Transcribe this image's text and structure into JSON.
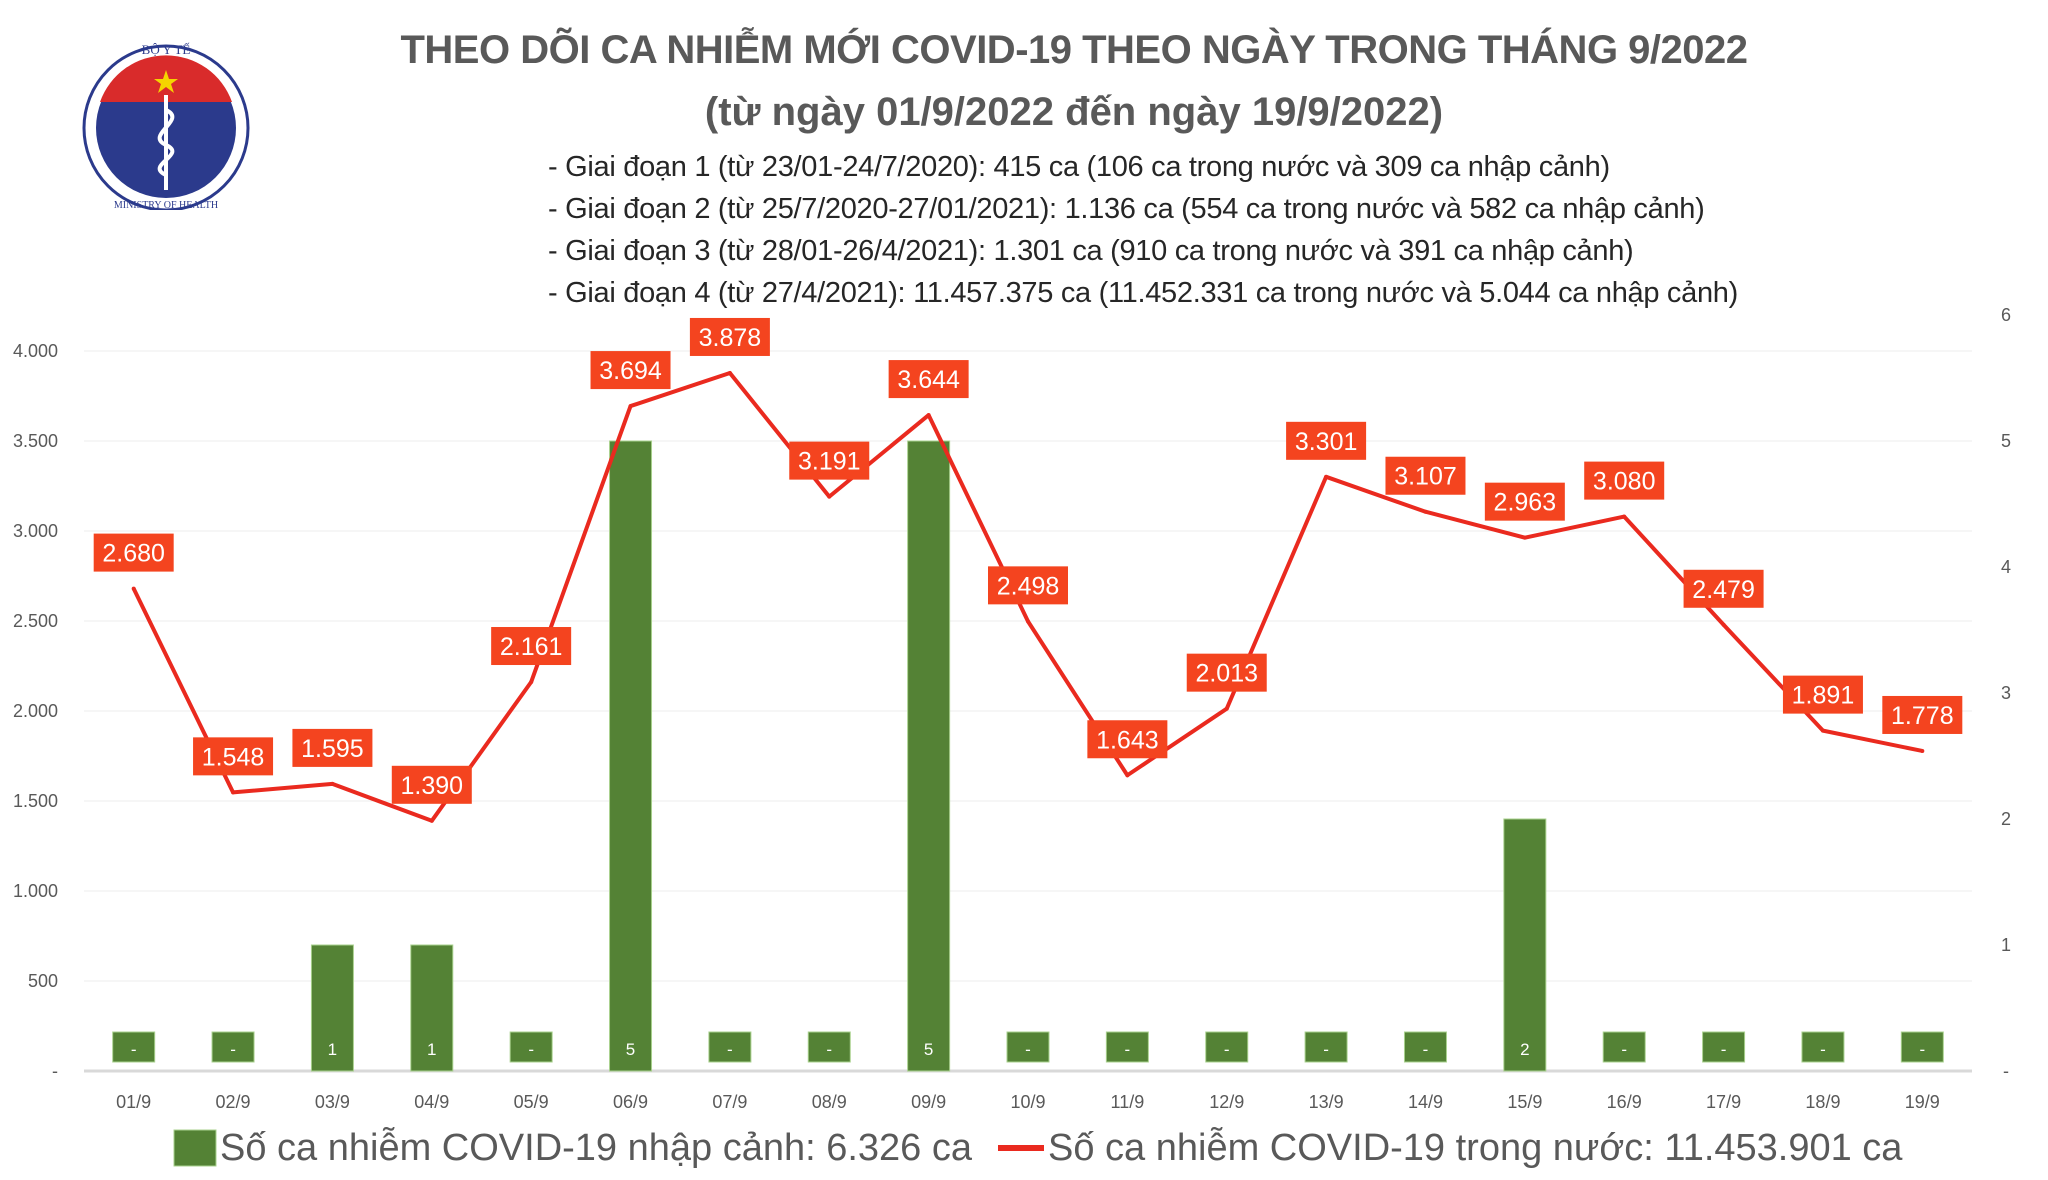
{
  "logo": {
    "text_top": "BỘ Y TẾ",
    "text_bottom": "MINISTRY OF HEALTH"
  },
  "title": "THEO DÕI CA NHIỄM MỚI COVID-19 THEO NGÀY TRONG THÁNG 9/2022",
  "subtitle": "(từ ngày 01/9/2022 đến ngày 19/9/2022)",
  "notes": [
    "- Giai đoạn 1 (từ 23/01-24/7/2020): 415 ca (106 ca trong nước và 309 ca nhập cảnh)",
    "- Giai đoạn 2 (từ 25/7/2020-27/01/2021): 1.136 ca (554 ca trong nước và 582 ca nhập cảnh)",
    "- Giai đoạn 3 (từ 28/01-26/4/2021): 1.301 ca (910 ca trong nước và 391 ca nhập cảnh)",
    "- Giai đoạn 4 (từ 27/4/2021): 11.457.375 ca (11.452.331 ca trong nước và 5.044 ca nhập cảnh)"
  ],
  "chart_data": {
    "type": "bar+line",
    "categories": [
      "01/9",
      "02/9",
      "03/9",
      "04/9",
      "05/9",
      "06/9",
      "07/9",
      "08/9",
      "09/9",
      "10/9",
      "11/9",
      "12/9",
      "13/9",
      "14/9",
      "15/9",
      "16/9",
      "17/9",
      "18/9",
      "19/9"
    ],
    "series": [
      {
        "name": "Số ca nhiễm COVID-19 nhập cảnh: 6.326 ca",
        "type": "bar",
        "axis": "right",
        "color": "#548235",
        "values": [
          0,
          0,
          1,
          1,
          0,
          5,
          0,
          0,
          5,
          0,
          0,
          0,
          0,
          0,
          2,
          0,
          0,
          0,
          0
        ],
        "labels": [
          "-",
          "-",
          "1",
          "1",
          "-",
          "5",
          "-",
          "-",
          "5",
          "-",
          "-",
          "-",
          "-",
          "-",
          "2",
          "-",
          "-",
          "-",
          "-"
        ]
      },
      {
        "name": "Số ca nhiễm COVID-19 trong nước: 11.453.901 ca",
        "type": "line",
        "axis": "left",
        "color": "#ea2a1f",
        "values": [
          2680,
          1548,
          1595,
          1390,
          2161,
          3694,
          3878,
          3191,
          3644,
          2498,
          1643,
          2013,
          3301,
          3107,
          2963,
          3080,
          2479,
          1891,
          1778
        ],
        "labels": [
          "2.680",
          "1.548",
          "1.595",
          "1.390",
          "2.161",
          "3.694",
          "3.878",
          "3.191",
          "3.644",
          "2.498",
          "1.643",
          "2.013",
          "3.301",
          "3.107",
          "2.963",
          "3.080",
          "2.479",
          "1.891",
          "1.778"
        ]
      }
    ],
    "left_axis": {
      "ylim": [
        0,
        4000
      ],
      "ticks": [
        "-",
        "500",
        "1.000",
        "1.500",
        "2.000",
        "2.500",
        "3.000",
        "3.500",
        "4.000"
      ]
    },
    "right_axis": {
      "ylim": [
        0,
        6
      ],
      "ticks": [
        "-",
        "1",
        "2",
        "3",
        "4",
        "5",
        "6"
      ]
    },
    "label_bg": "#f4441f",
    "grid": true,
    "legend": "bottom"
  }
}
